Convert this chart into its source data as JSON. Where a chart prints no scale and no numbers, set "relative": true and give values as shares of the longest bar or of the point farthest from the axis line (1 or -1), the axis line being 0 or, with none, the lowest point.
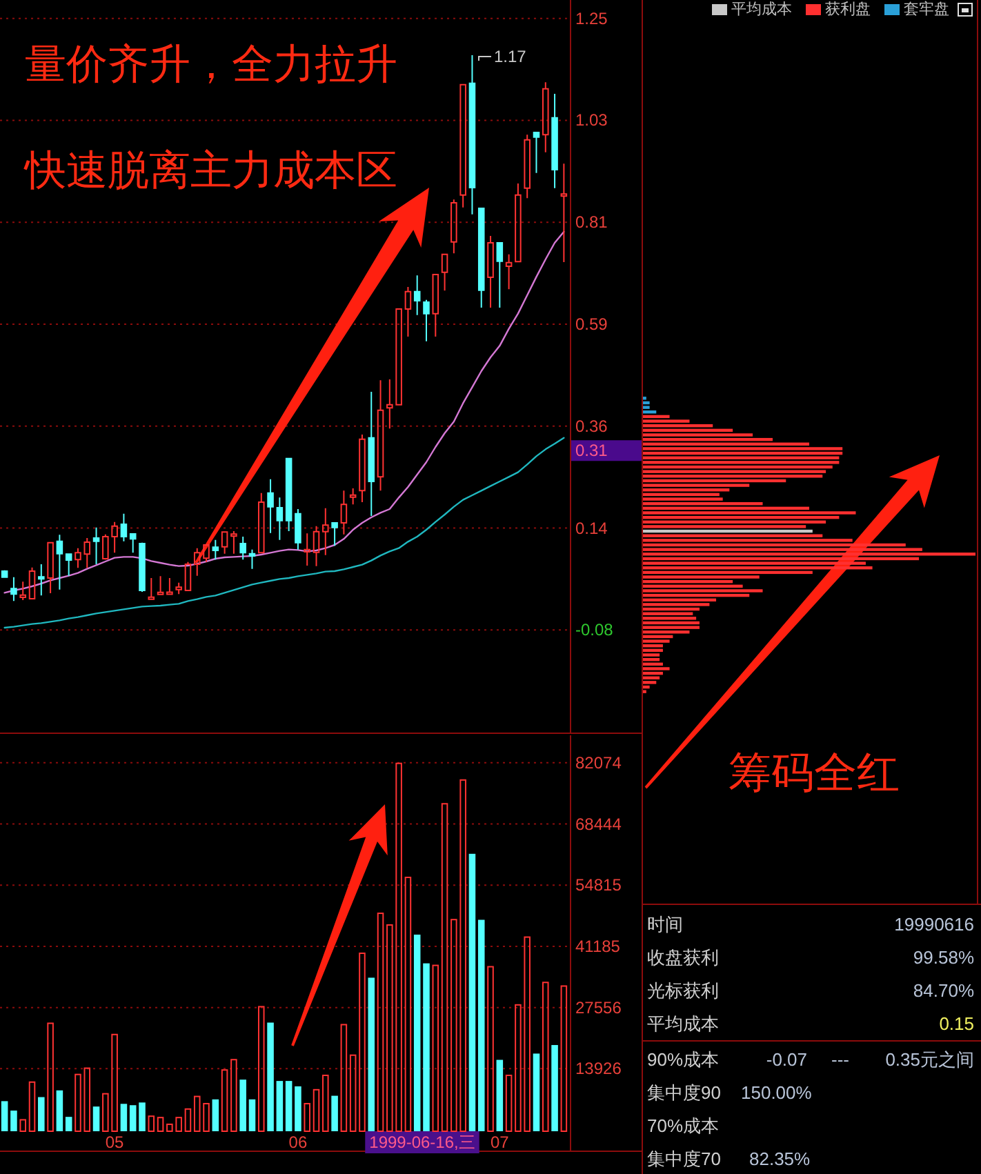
{
  "chart_data": [
    {
      "type": "candlestick",
      "categories": [
        null,
        null,
        null,
        null,
        null,
        null,
        null,
        null,
        null,
        null,
        null,
        null,
        null,
        null,
        null,
        null,
        null,
        null,
        null,
        null,
        null,
        null,
        null,
        null,
        null,
        null,
        null,
        null,
        null,
        null,
        null,
        null,
        null,
        null,
        null,
        null,
        null,
        null,
        null,
        null,
        null,
        null,
        null,
        null,
        null,
        null,
        null,
        null,
        null,
        null,
        null,
        null,
        null,
        null,
        null,
        null,
        null,
        null,
        null,
        null,
        null,
        null
      ],
      "ohlc": [
        [
          0.048,
          0.05,
          0.034,
          0.035
        ],
        [
          0.01,
          0.035,
          -0.017,
          -0.002
        ],
        [
          -0.009,
          0.025,
          -0.015,
          -0.004
        ],
        [
          -0.012,
          0.056,
          -0.012,
          0.048
        ],
        [
          0.035,
          0.063,
          -0.005,
          0.032
        ],
        [
          0.033,
          0.11,
          0.0,
          0.11
        ],
        [
          0.113,
          0.127,
          0.008,
          0.086
        ],
        [
          0.085,
          0.085,
          0.038,
          0.072
        ],
        [
          0.073,
          0.098,
          0.055,
          0.088
        ],
        [
          0.085,
          0.12,
          0.055,
          0.111
        ],
        [
          0.12,
          0.143,
          0.063,
          0.113
        ],
        [
          0.075,
          0.128,
          0.073,
          0.123
        ],
        [
          0.123,
          0.155,
          0.088,
          0.146
        ],
        [
          0.15,
          0.173,
          0.113,
          0.123
        ],
        [
          0.129,
          0.129,
          0.088,
          0.118
        ],
        [
          0.108,
          0.11,
          0.003,
          0.006
        ],
        [
          -0.012,
          0.033,
          -0.012,
          -0.01
        ],
        [
          -0.002,
          0.037,
          -0.002,
          0.001
        ],
        [
          -0.002,
          0.033,
          -0.002,
          0.002
        ],
        [
          0.008,
          0.023,
          -0.002,
          0.013
        ],
        [
          0.006,
          0.068,
          0.006,
          0.063
        ],
        [
          0.063,
          0.098,
          0.038,
          0.088
        ],
        [
          0.076,
          0.105,
          0.068,
          0.105
        ],
        [
          0.1,
          0.116,
          0.073,
          0.093
        ],
        [
          0.101,
          0.133,
          0.086,
          0.133
        ],
        [
          0.125,
          0.135,
          0.086,
          0.128
        ],
        [
          0.108,
          0.123,
          0.073,
          0.088
        ],
        [
          0.086,
          0.095,
          0.053,
          0.081
        ],
        [
          0.088,
          0.218,
          0.088,
          0.198
        ],
        [
          0.218,
          0.248,
          0.131,
          0.188
        ],
        [
          0.186,
          0.208,
          0.116,
          0.158
        ],
        [
          0.293,
          0.293,
          0.135,
          0.158
        ],
        [
          0.173,
          0.183,
          0.095,
          0.11
        ],
        [
          0.09,
          0.13,
          0.06,
          0.095
        ],
        [
          0.089,
          0.146,
          0.059,
          0.134
        ],
        [
          0.134,
          0.185,
          0.083,
          0.148
        ],
        [
          0.153,
          0.153,
          0.103,
          0.143
        ],
        [
          0.153,
          0.223,
          0.128,
          0.193
        ],
        [
          0.209,
          0.228,
          0.193,
          0.213
        ],
        [
          0.223,
          0.345,
          0.198,
          0.335
        ],
        [
          0.338,
          0.438,
          0.168,
          0.243
        ],
        [
          0.253,
          0.463,
          0.223,
          0.398
        ],
        [
          0.403,
          0.465,
          0.358,
          0.41
        ],
        [
          0.41,
          0.618,
          0.41,
          0.618
        ],
        [
          0.618,
          0.666,
          0.558,
          0.656
        ],
        [
          0.656,
          0.691,
          0.605,
          0.636
        ],
        [
          0.633,
          0.638,
          0.548,
          0.608
        ],
        [
          0.608,
          0.693,
          0.558,
          0.693
        ],
        [
          0.698,
          0.737,
          0.658,
          0.737
        ],
        [
          0.764,
          0.856,
          0.739,
          0.849
        ],
        [
          0.866,
          1.106,
          0.839,
          1.106
        ],
        [
          1.109,
          1.17,
          0.824,
          0.882
        ],
        [
          0.837,
          0.837,
          0.621,
          0.659
        ],
        [
          0.687,
          0.777,
          0.621,
          0.762
        ],
        [
          0.762,
          0.762,
          0.621,
          0.722
        ],
        [
          0.711,
          0.737,
          0.661,
          0.719
        ],
        [
          0.721,
          0.891,
          0.721,
          0.866
        ],
        [
          0.881,
          0.997,
          0.859,
          0.986
        ],
        [
          1.002,
          1.002,
          0.914,
          0.992
        ],
        [
          0.997,
          1.111,
          0.959,
          1.097
        ],
        [
          1.034,
          1.086,
          0.881,
          0.921
        ],
        [
          0.866,
          0.934,
          0.72,
          0.866
        ]
      ],
      "series": [
        {
          "type": "line",
          "color": "#d478d4",
          "values": [
            0.001,
            0.006,
            0.01,
            0.015,
            0.021,
            0.028,
            0.033,
            0.038,
            0.044,
            0.053,
            0.061,
            0.069,
            0.077,
            0.079,
            0.079,
            0.076,
            0.07,
            0.066,
            0.062,
            0.059,
            0.06,
            0.064,
            0.069,
            0.075,
            0.078,
            0.079,
            0.08,
            0.081,
            0.084,
            0.088,
            0.092,
            0.095,
            0.094,
            0.091,
            0.093,
            0.098,
            0.105,
            0.118,
            0.138,
            0.153,
            0.165,
            0.175,
            0.183,
            0.208,
            0.231,
            0.258,
            0.285,
            0.318,
            0.348,
            0.373,
            0.413,
            0.448,
            0.483,
            0.513,
            0.538,
            0.575,
            0.608,
            0.648,
            0.688,
            0.726,
            0.762,
            0.786
          ]
        },
        {
          "type": "line",
          "color": "#20b8c0",
          "values": [
            -0.075,
            -0.073,
            -0.07,
            -0.067,
            -0.065,
            -0.062,
            -0.059,
            -0.055,
            -0.052,
            -0.048,
            -0.044,
            -0.041,
            -0.038,
            -0.035,
            -0.032,
            -0.029,
            -0.028,
            -0.027,
            -0.025,
            -0.023,
            -0.017,
            -0.013,
            -0.008,
            -0.005,
            0.001,
            0.007,
            0.013,
            0.019,
            0.023,
            0.027,
            0.031,
            0.033,
            0.037,
            0.04,
            0.043,
            0.047,
            0.048,
            0.052,
            0.057,
            0.062,
            0.071,
            0.082,
            0.091,
            0.098,
            0.112,
            0.123,
            0.138,
            0.155,
            0.171,
            0.188,
            0.203,
            0.213,
            0.223,
            0.233,
            0.243,
            0.253,
            0.263,
            0.28,
            0.298,
            0.313,
            0.325,
            0.338
          ]
        }
      ],
      "ylim": [
        -0.3,
        1.29
      ],
      "yticks": [
        1.25,
        {
          "value": 1.0283,
          "label": "1.03"
        },
        {
          "value": 0.8067,
          "label": "0.81"
        },
        {
          "value": 0.585,
          "label": "0.59"
        },
        {
          "value": 0.3633,
          "label": "0.36"
        },
        {
          "value": 0.1417,
          "label": "0.14"
        },
        -0.08
      ],
      "grid": "y",
      "tick_labels": "y",
      "ref_lines": [
        {
          "axis": "y",
          "value": 0.31,
          "label": "0.31",
          "color": "#4a0a8c"
        }
      ],
      "annotations": [
        "量价齐升，全力拉升",
        "快速脱离主力成本区",
        "1.17"
      ]
    },
    {
      "type": "bar",
      "categories": [
        null,
        null,
        null,
        null,
        null,
        null,
        null,
        null,
        null,
        null,
        null,
        null,
        "05",
        null,
        null,
        null,
        null,
        null,
        null,
        null,
        null,
        null,
        null,
        null,
        null,
        null,
        null,
        null,
        null,
        null,
        null,
        null,
        "06",
        null,
        null,
        null,
        null,
        null,
        null,
        null,
        null,
        null,
        null,
        null,
        null,
        null,
        null,
        null,
        null,
        null,
        null,
        null,
        null,
        null,
        "07",
        null,
        null,
        null,
        null,
        null,
        null,
        null
      ],
      "values": [
        6700,
        4600,
        2700,
        11100,
        7600,
        24200,
        9100,
        3200,
        12800,
        14200,
        5500,
        8500,
        21700,
        6100,
        5800,
        6400,
        3500,
        3200,
        1700,
        3200,
        5100,
        7900,
        6300,
        7100,
        13800,
        16100,
        11500,
        7100,
        27900,
        24200,
        11200,
        11200,
        10000,
        6300,
        9400,
        12600,
        7900,
        23900,
        17100,
        39800,
        34200,
        48700,
        46100,
        82100,
        56700,
        43800,
        37400,
        37100,
        73100,
        47300,
        78400,
        61800,
        47100,
        36800,
        15900,
        12600,
        28300,
        43400,
        17300,
        33300,
        19200,
        32500
      ],
      "colors": [
        "#54ffff",
        "#54ffff",
        "#ff3232",
        "#ff3232",
        "#54ffff",
        "#ff3232",
        "#54ffff",
        "#54ffff",
        "#ff3232",
        "#ff3232",
        "#54ffff",
        "#ff3232",
        "#ff3232",
        "#54ffff",
        "#54ffff",
        "#54ffff",
        "#ff3232",
        "#ff3232",
        "#ff3232",
        "#ff3232",
        "#ff3232",
        "#ff3232",
        "#ff3232",
        "#54ffff",
        "#ff3232",
        "#ff3232",
        "#54ffff",
        "#54ffff",
        "#ff3232",
        "#54ffff",
        "#54ffff",
        "#54ffff",
        "#54ffff",
        "#ff3232",
        "#ff3232",
        "#ff3232",
        "#54ffff",
        "#ff3232",
        "#ff3232",
        "#ff3232",
        "#54ffff",
        "#ff3232",
        "#ff3232",
        "#ff3232",
        "#ff3232",
        "#54ffff",
        "#54ffff",
        "#ff3232",
        "#ff3232",
        "#ff3232",
        "#ff3232",
        "#54ffff",
        "#54ffff",
        "#ff3232",
        "#54ffff",
        "#ff3232",
        "#ff3232",
        "#ff3232",
        "#54ffff",
        "#ff3232",
        "#54ffff",
        "#ff3232"
      ],
      "ylim": [
        0,
        88200
      ],
      "yticks": [
        82074,
        68444,
        54815,
        41185,
        27556,
        13926
      ],
      "grid": "y",
      "annotations": [
        "1999-06-16,三"
      ]
    },
    {
      "type": "bar",
      "orientation": "horizontal",
      "stacked": true,
      "relative": true,
      "tick_labels": false,
      "legend": "top right",
      "categories": [
        null,
        null,
        null,
        null,
        null,
        null,
        null,
        null,
        null,
        null,
        null,
        null,
        null,
        null,
        null,
        null,
        null,
        null,
        null,
        null,
        null,
        null,
        null,
        null,
        null,
        null,
        null,
        null,
        null,
        null,
        null,
        null,
        null,
        null,
        null,
        null,
        null,
        null,
        null,
        null,
        null,
        null,
        null,
        null,
        null,
        null,
        null,
        null,
        null,
        null,
        null,
        null,
        null,
        null,
        null,
        null,
        null,
        null,
        null,
        null,
        null,
        null,
        null,
        null,
        null
      ],
      "series": [
        {
          "name": "平均成本",
          "color": "#c8c8c8",
          "values": [
            null,
            null,
            null,
            null,
            null,
            null,
            null,
            null,
            null,
            null,
            null,
            null,
            null,
            null,
            null,
            null,
            null,
            null,
            null,
            null,
            null,
            null,
            null,
            null,
            null,
            null,
            null,
            null,
            null,
            0.51,
            null,
            null,
            null,
            null,
            null,
            null,
            null,
            null,
            null,
            null,
            null,
            null,
            null,
            null,
            null,
            null,
            null,
            null,
            null,
            null,
            null,
            null,
            null,
            null,
            null,
            null,
            null,
            null,
            null,
            null,
            null,
            null,
            null,
            null,
            null
          ]
        },
        {
          "name": "获利盘",
          "color": "#ff3030",
          "values": [
            null,
            null,
            null,
            null,
            0.08,
            0.14,
            0.21,
            0.27,
            0.33,
            0.39,
            0.5,
            0.6,
            0.6,
            0.59,
            0.59,
            0.57,
            0.55,
            0.54,
            0.43,
            0.32,
            0.26,
            0.23,
            0.24,
            0.36,
            0.5,
            0.64,
            0.59,
            0.55,
            0.49,
            null,
            0.54,
            0.63,
            0.79,
            0.84,
            1.0,
            0.83,
            0.67,
            0.69,
            0.51,
            0.35,
            0.27,
            0.3,
            0.36,
            0.32,
            0.22,
            0.2,
            0.17,
            0.15,
            0.16,
            0.17,
            0.17,
            0.14,
            0.09,
            0.08,
            0.06,
            0.06,
            0.05,
            0.05,
            0.06,
            0.08,
            0.06,
            0.05,
            0.04,
            0.02,
            0.01
          ]
        },
        {
          "name": "套牢盘",
          "color": "#2aa0d8",
          "values": [
            0.01,
            0.02,
            0.02,
            0.04,
            null,
            null,
            null,
            null,
            null,
            null,
            null,
            null,
            null,
            null,
            null,
            null,
            null,
            null,
            null,
            null,
            null,
            null,
            null,
            null,
            null,
            null,
            null,
            null,
            null,
            null,
            null,
            null,
            null,
            null,
            null,
            null,
            null,
            null,
            null,
            null,
            null,
            null,
            null,
            null,
            null,
            null,
            null,
            null,
            null,
            null,
            null,
            null,
            null,
            null,
            null,
            null,
            null,
            null,
            null,
            null,
            null,
            null,
            null,
            null,
            null
          ]
        }
      ],
      "annotations": [
        "筹码全红"
      ]
    },
    {
      "type": "other",
      "annotations": [
        "时间",
        "19990616",
        "收盘获利",
        "99.58%",
        "光标获利",
        "84.70%",
        "平均成本",
        "0.15",
        "90%成本",
        "-0.07",
        "---",
        "0.35元之间",
        "集中度90",
        "150.00%",
        "70%成本",
        "集中度70",
        "82.35%"
      ]
    }
  ]
}
